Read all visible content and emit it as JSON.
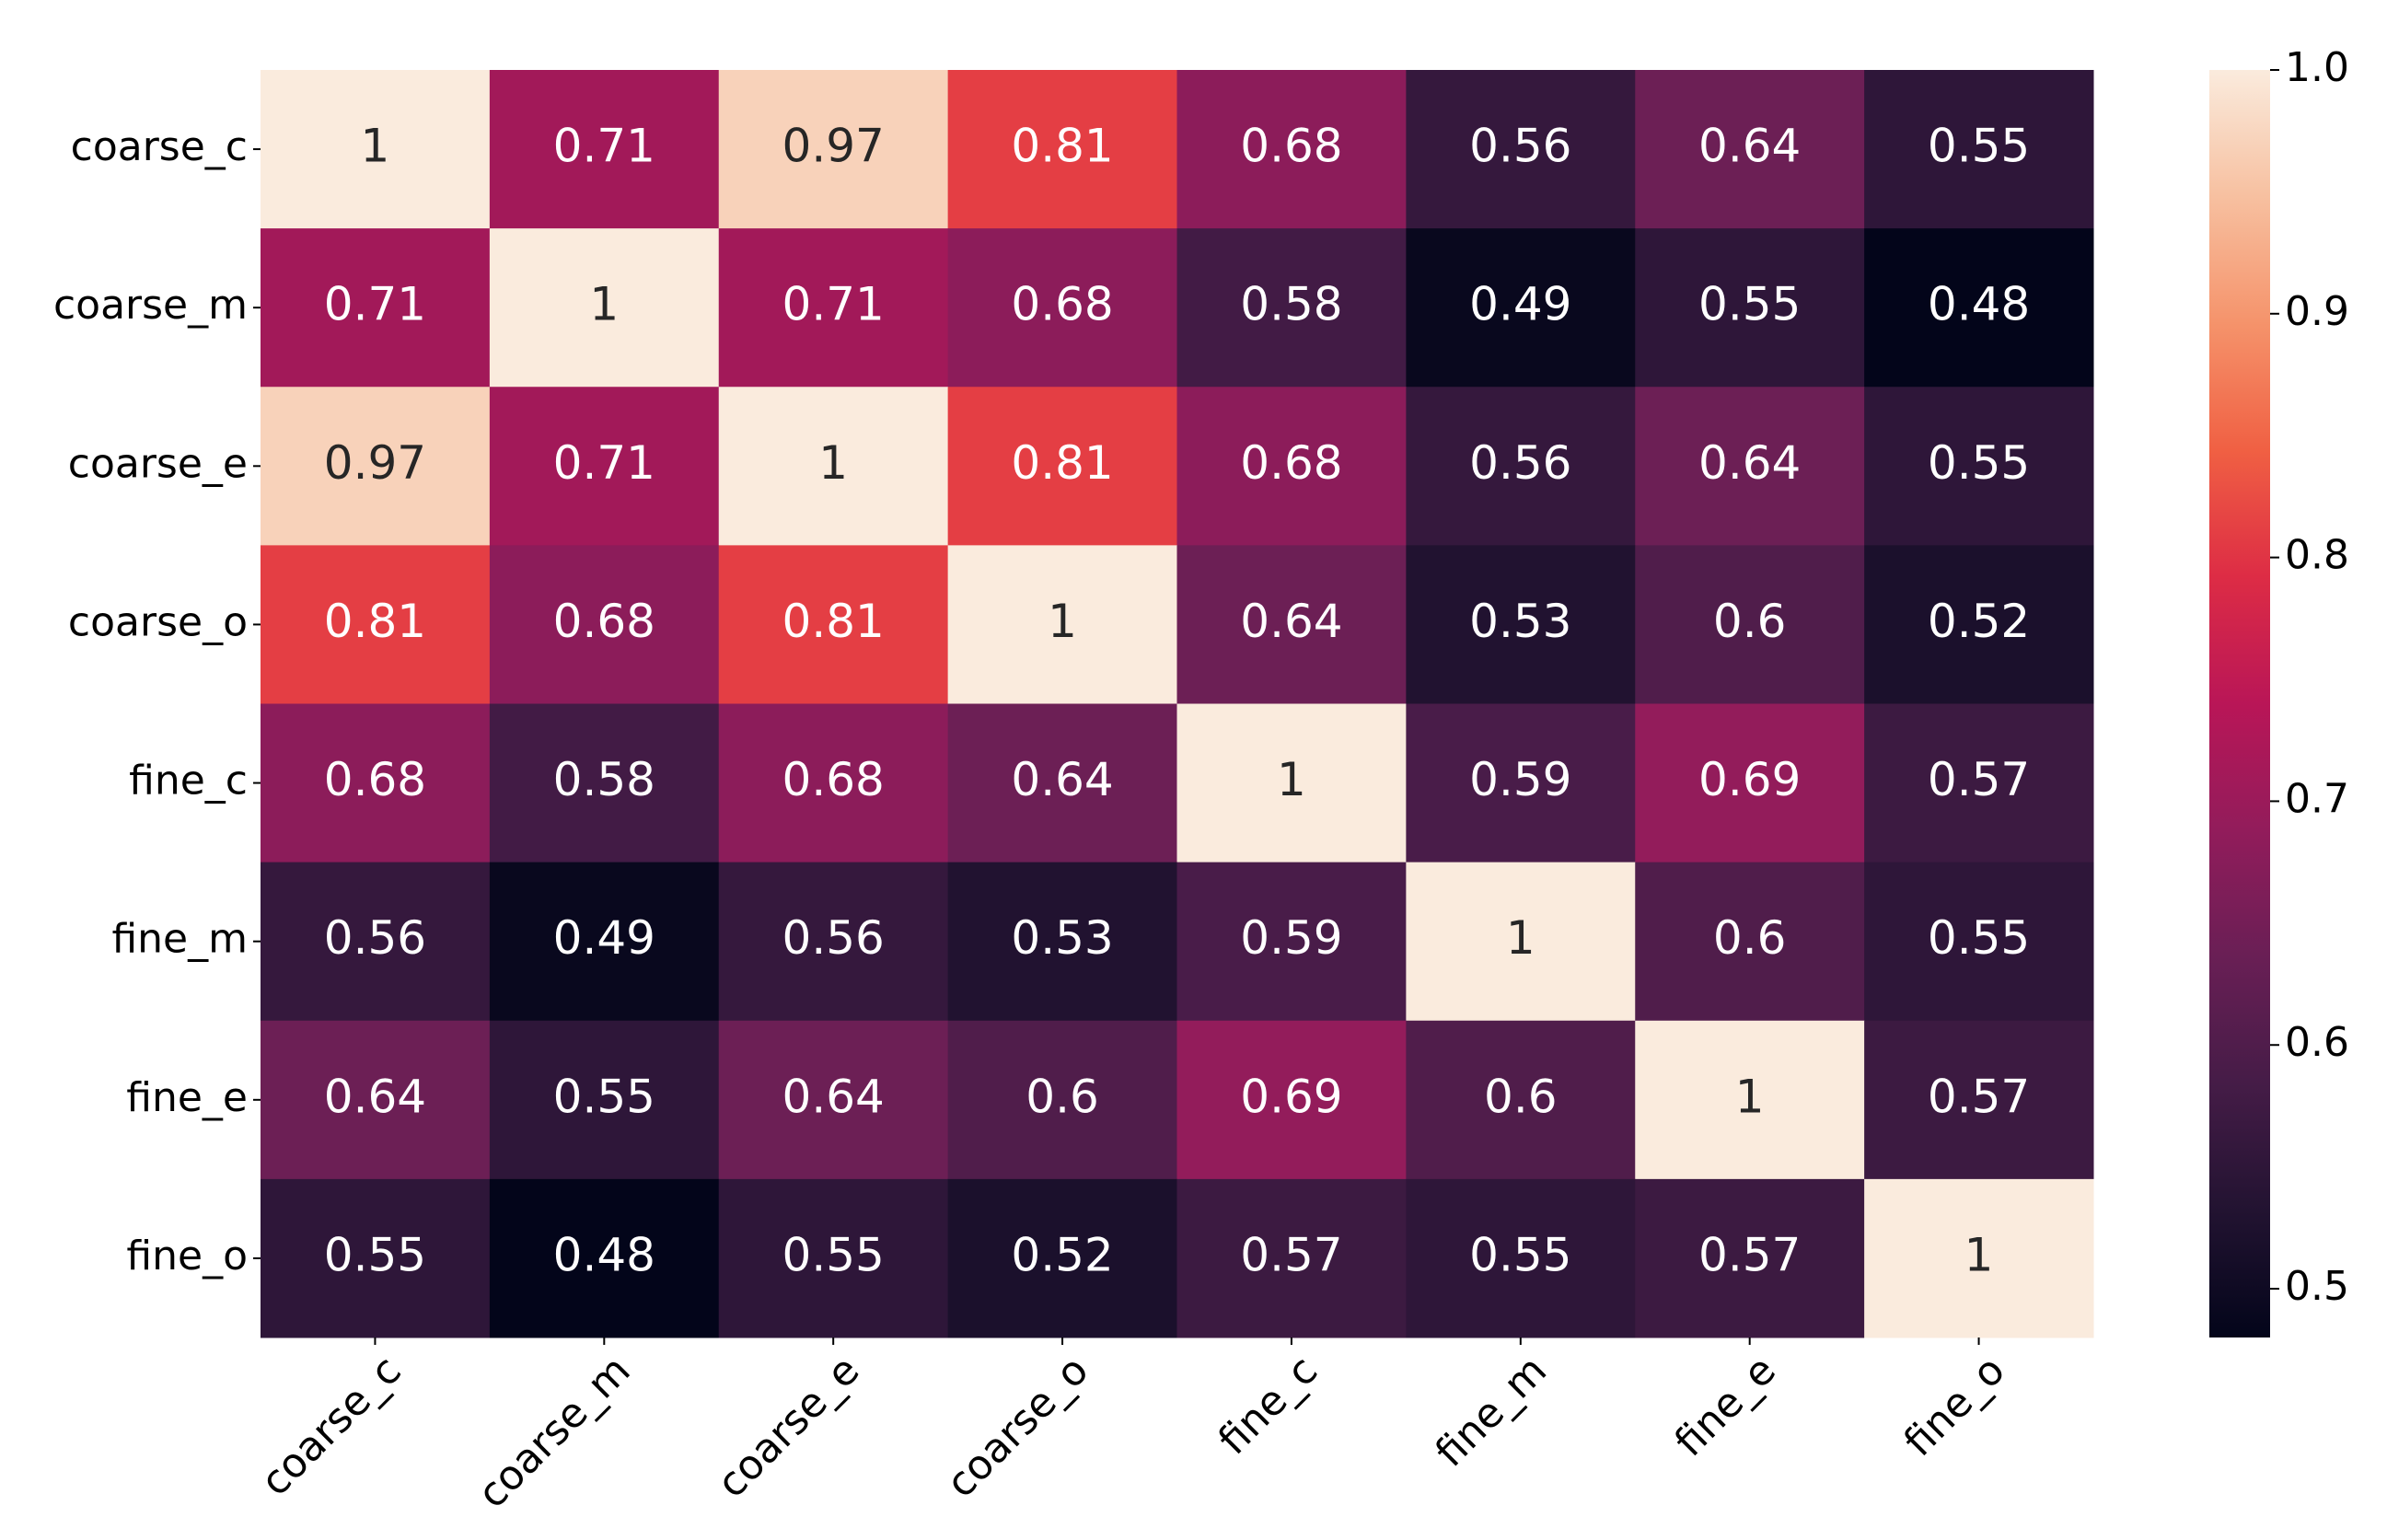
{
  "chart_data": {
    "type": "heatmap",
    "x_categories": [
      "coarse_c",
      "coarse_m",
      "coarse_e",
      "coarse_o",
      "fine_c",
      "fine_m",
      "fine_e",
      "fine_o"
    ],
    "y_categories": [
      "coarse_c",
      "coarse_m",
      "coarse_e",
      "coarse_o",
      "fine_c",
      "fine_m",
      "fine_e",
      "fine_o"
    ],
    "values": [
      [
        1,
        0.71,
        0.97,
        0.81,
        0.68,
        0.56,
        0.64,
        0.55
      ],
      [
        0.71,
        1,
        0.71,
        0.68,
        0.58,
        0.49,
        0.55,
        0.48
      ],
      [
        0.97,
        0.71,
        1,
        0.81,
        0.68,
        0.56,
        0.64,
        0.55
      ],
      [
        0.81,
        0.68,
        0.81,
        1,
        0.64,
        0.53,
        0.6,
        0.52
      ],
      [
        0.68,
        0.58,
        0.68,
        0.64,
        1,
        0.59,
        0.69,
        0.57
      ],
      [
        0.56,
        0.49,
        0.56,
        0.53,
        0.59,
        1,
        0.6,
        0.55
      ],
      [
        0.64,
        0.55,
        0.64,
        0.6,
        0.69,
        0.6,
        1,
        0.57
      ],
      [
        0.55,
        0.48,
        0.55,
        0.52,
        0.57,
        0.55,
        0.57,
        1
      ]
    ],
    "colormap": [
      "#03051a",
      "#221331",
      "#451c47",
      "#691f55",
      "#921c5b",
      "#b91657",
      "#dd2c45",
      "#f06043",
      "#f5936b",
      "#f7c0a0",
      "#faebdd"
    ],
    "clim": [
      0.48,
      1
    ],
    "cticks": [
      0.5,
      0.6,
      0.7,
      0.8,
      0.9,
      {
        "value": 1,
        "label": "1.0"
      }
    ]
  }
}
